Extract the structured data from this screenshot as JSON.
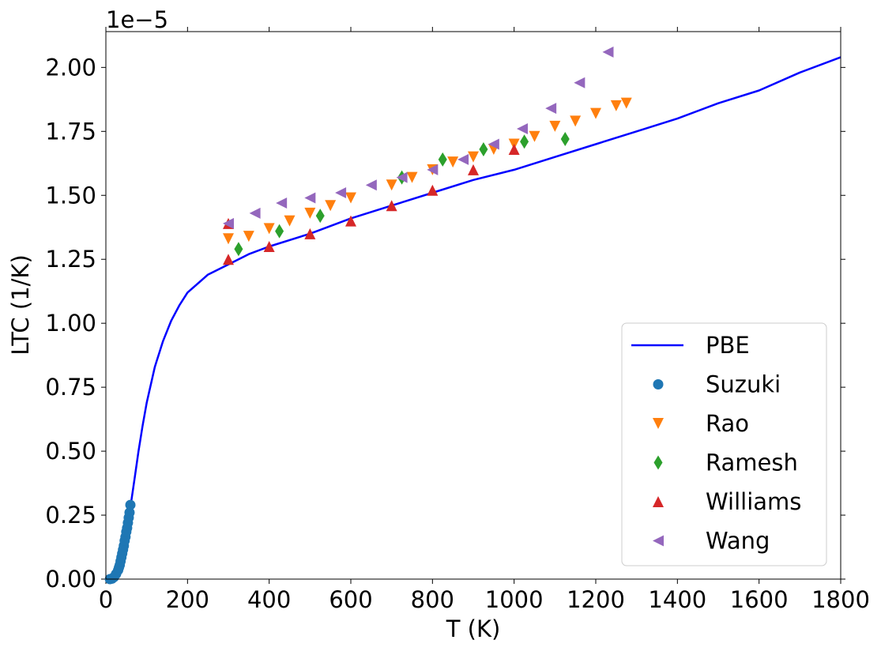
{
  "chart_data": {
    "type": "scatter",
    "xlabel": "T (K)",
    "ylabel": "LTC (1/K)",
    "offset_label": "1e−5",
    "xlim": [
      0,
      1800
    ],
    "ylim": [
      0,
      2.14
    ],
    "xticks": [
      "0",
      "200",
      "400",
      "600",
      "800",
      "1000",
      "1200",
      "1400",
      "1600",
      "1800"
    ],
    "yticks": [
      "0.00",
      "0.25",
      "0.50",
      "0.75",
      "1.00",
      "1.25",
      "1.50",
      "1.75",
      "2.00"
    ],
    "legend_position": "bottom-right",
    "series": [
      {
        "name": "PBE",
        "kind": "line",
        "color": "#0000ff",
        "x": [
          0,
          10,
          20,
          30,
          40,
          50,
          60,
          70,
          80,
          90,
          100,
          120,
          140,
          160,
          180,
          200,
          250,
          300,
          350,
          400,
          500,
          600,
          700,
          800,
          900,
          1000,
          1100,
          1200,
          1300,
          1400,
          1500,
          1600,
          1700,
          1800
        ],
        "y": [
          0,
          0,
          0.01,
          0.04,
          0.1,
          0.18,
          0.28,
          0.39,
          0.5,
          0.6,
          0.69,
          0.83,
          0.93,
          1.01,
          1.07,
          1.12,
          1.19,
          1.23,
          1.27,
          1.3,
          1.35,
          1.41,
          1.46,
          1.51,
          1.56,
          1.6,
          1.65,
          1.7,
          1.75,
          1.8,
          1.86,
          1.91,
          1.98,
          2.04
        ]
      },
      {
        "name": "Suzuki",
        "kind": "circle",
        "color": "#1f77b4",
        "x": [
          10,
          15,
          20,
          25,
          30,
          32,
          34,
          36,
          38,
          40,
          42,
          44,
          46,
          48,
          50,
          52,
          54,
          56,
          58,
          60
        ],
        "y": [
          0,
          0.002,
          0.008,
          0.02,
          0.035,
          0.045,
          0.055,
          0.07,
          0.085,
          0.1,
          0.115,
          0.13,
          0.15,
          0.165,
          0.185,
          0.2,
          0.22,
          0.24,
          0.26,
          0.29
        ]
      },
      {
        "name": "Rao",
        "kind": "triangle-down",
        "color": "#ff7f0e",
        "x": [
          300,
          350,
          400,
          450,
          500,
          550,
          600,
          700,
          750,
          800,
          850,
          900,
          950,
          1000,
          1050,
          1100,
          1150,
          1200,
          1250,
          1275
        ],
        "y": [
          1.33,
          1.34,
          1.37,
          1.4,
          1.43,
          1.46,
          1.49,
          1.54,
          1.57,
          1.6,
          1.63,
          1.65,
          1.68,
          1.7,
          1.73,
          1.77,
          1.79,
          1.82,
          1.85,
          1.86
        ]
      },
      {
        "name": "Ramesh",
        "kind": "diamond",
        "color": "#2ca02c",
        "x": [
          325,
          425,
          525,
          725,
          825,
          925,
          1025,
          1125
        ],
        "y": [
          1.29,
          1.36,
          1.42,
          1.57,
          1.64,
          1.68,
          1.71,
          1.72
        ]
      },
      {
        "name": "Williams",
        "kind": "triangle-up",
        "color": "#d62728",
        "x": [
          300,
          300,
          400,
          500,
          600,
          700,
          800,
          900,
          1000
        ],
        "y": [
          1.25,
          1.39,
          1.3,
          1.35,
          1.4,
          1.46,
          1.52,
          1.6,
          1.68
        ]
      },
      {
        "name": "Wang",
        "kind": "triangle-left",
        "color": "#9467bd",
        "x": [
          300,
          365,
          430,
          500,
          575,
          650,
          725,
          800,
          875,
          950,
          1020,
          1090,
          1160,
          1230
        ],
        "y": [
          1.39,
          1.43,
          1.47,
          1.49,
          1.51,
          1.54,
          1.57,
          1.6,
          1.64,
          1.7,
          1.76,
          1.84,
          1.94,
          2.06
        ]
      }
    ]
  }
}
